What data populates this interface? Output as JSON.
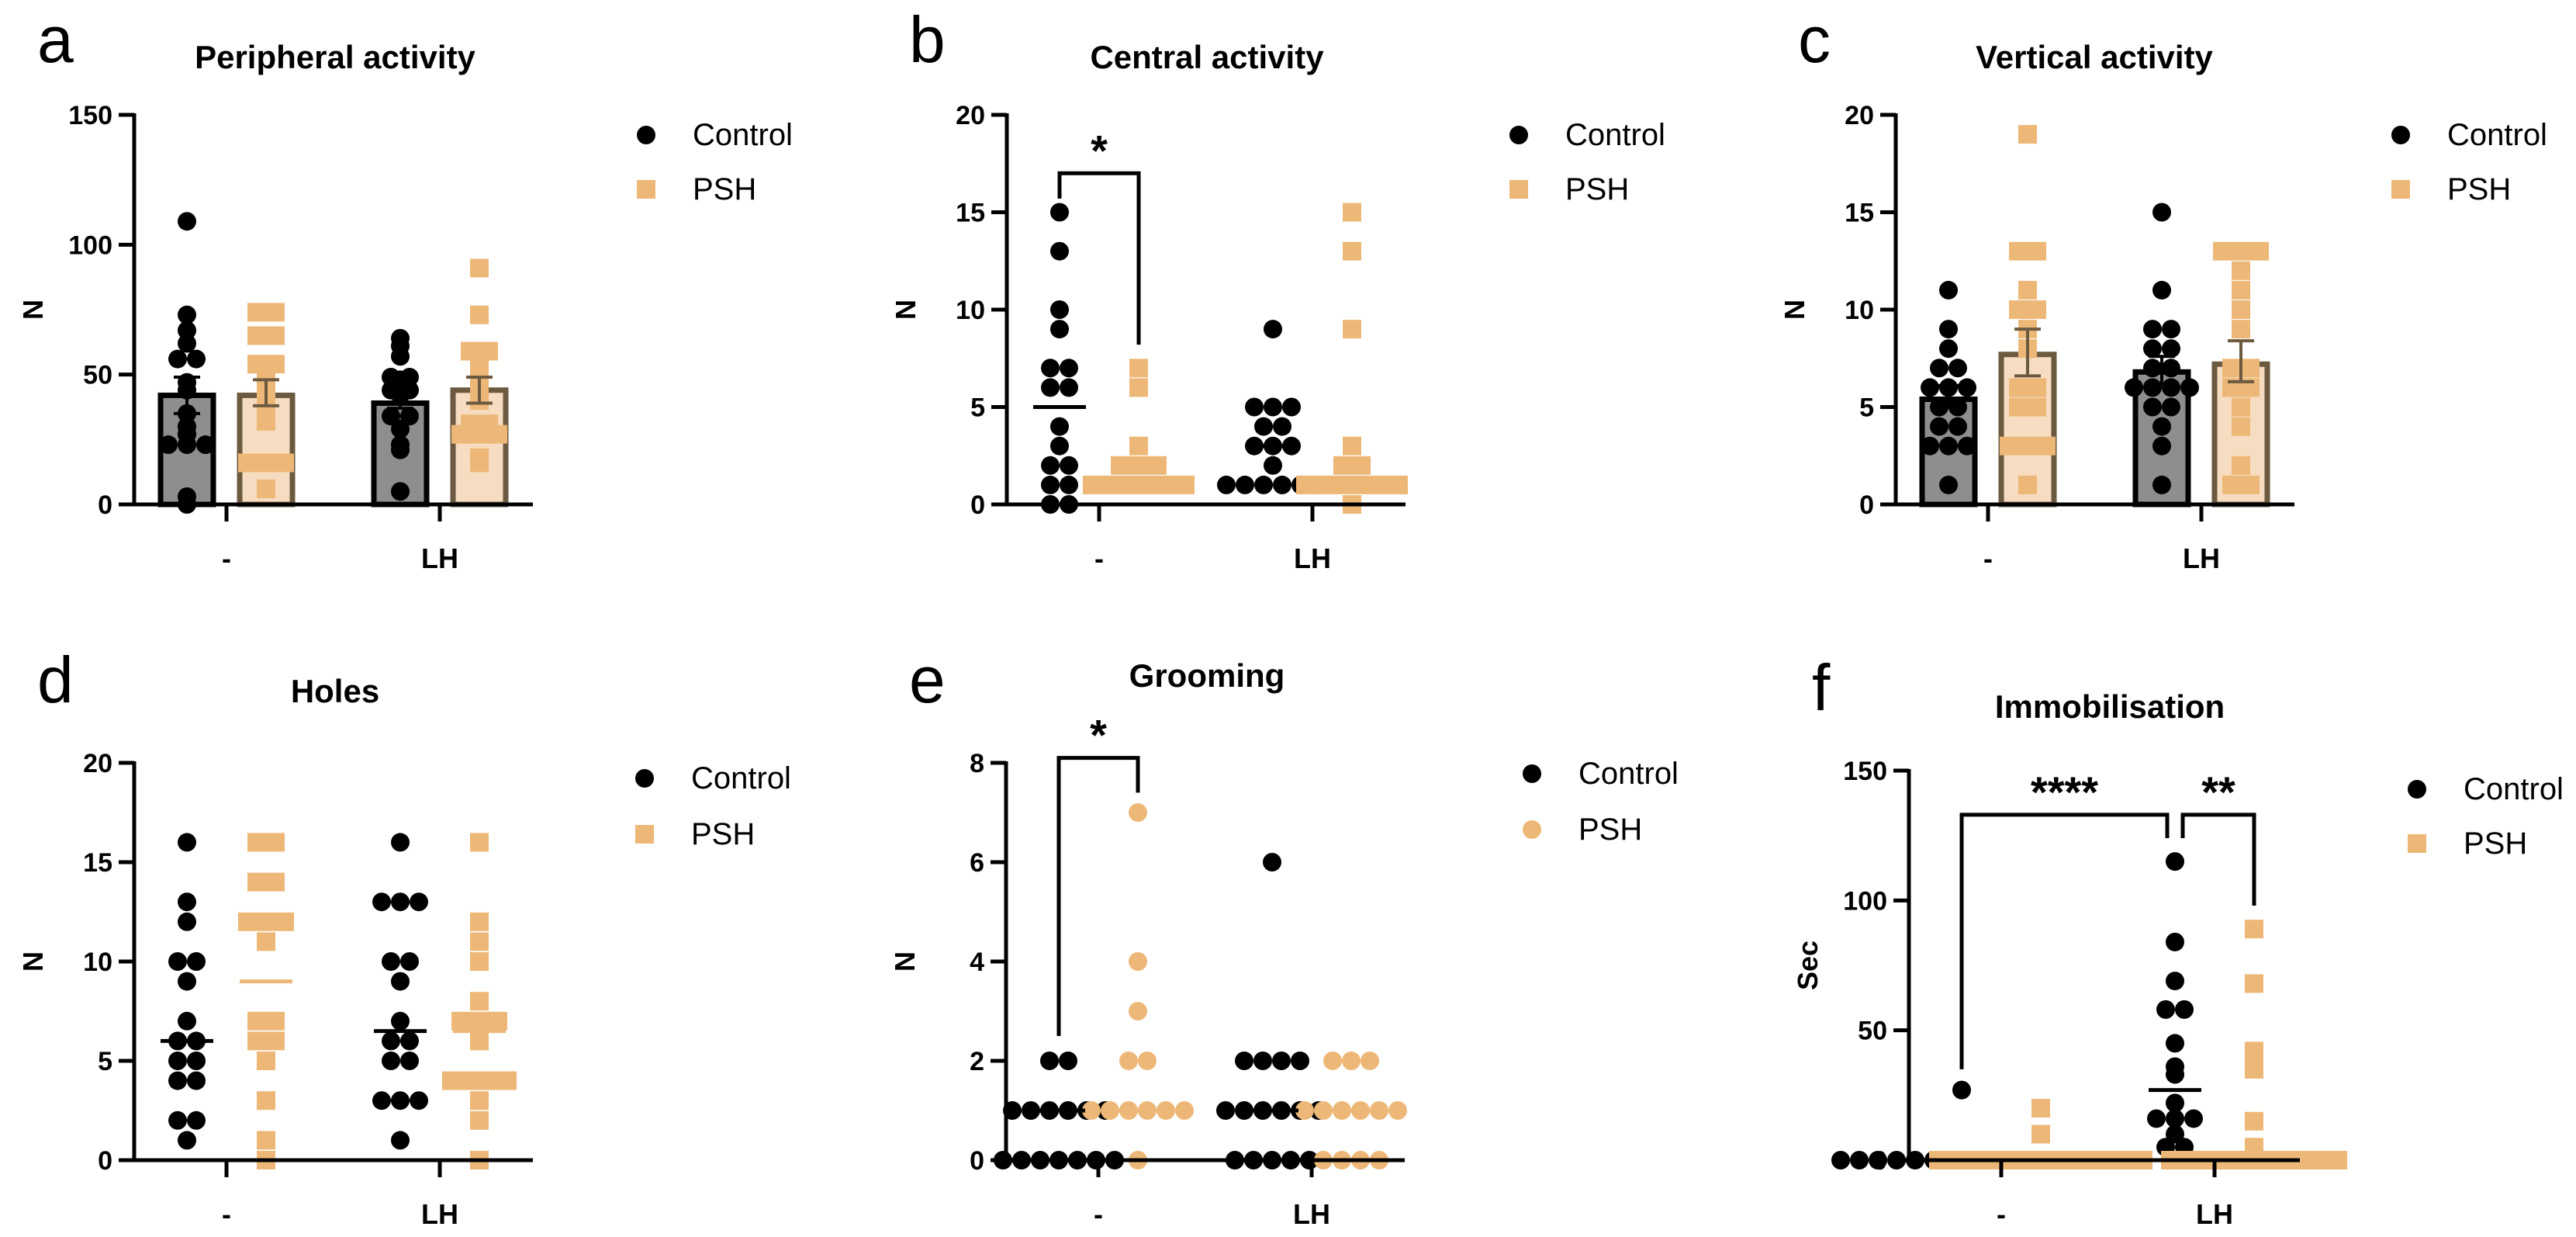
{
  "colors": {
    "control": "#000000",
    "psh": "#EDB877",
    "control_bar": "#8E8E8E",
    "psh_bar": "#F6DCC0",
    "psh_bar_edge": "#6B5A40"
  },
  "chart_data": [
    {
      "panel_label": "a",
      "type": "bar",
      "title": "Peripheral activity",
      "ylabel": "N",
      "ylim": [
        0,
        150
      ],
      "yticks": [
        "0",
        "50",
        "100",
        "150"
      ],
      "ytick_values": [
        0,
        50,
        100,
        150
      ],
      "categories": [
        "-",
        "LH"
      ],
      "legend_placement": "right",
      "series": [
        {
          "name": "Control",
          "marker": "circle",
          "points": [
            [
              109,
              73,
              67,
              62,
              56,
              56,
              47,
              44,
              35,
              30,
              27,
              23,
              23,
              23,
              3,
              0
            ],
            [
              64,
              61,
              57,
              49,
              49,
              48,
              44,
              44,
              42,
              34,
              34,
              29,
              23,
              21,
              5
            ]
          ],
          "bar": [
            42,
            39
          ],
          "sem": [
            [
              35,
              49
            ],
            [
              37,
              43
            ]
          ]
        },
        {
          "name": "PSH",
          "marker": "square",
          "points": [
            [
              74,
              74,
              65,
              65,
              54,
              54,
              51,
              47,
              43,
              38,
              35,
              32,
              16,
              16,
              16,
              6
            ],
            [
              91,
              73,
              59,
              59,
              57,
              51,
              47,
              41,
              40,
              31,
              31,
              27,
              27,
              27,
              18,
              16
            ]
          ],
          "bar": [
            42,
            44
          ],
          "sem": [
            [
              38,
              48
            ],
            [
              39,
              49
            ]
          ]
        }
      ],
      "significance": []
    },
    {
      "panel_label": "b",
      "type": "scatter",
      "title": "Central activity",
      "ylabel": "N",
      "ylim": [
        0,
        20
      ],
      "yticks": [
        "0",
        "5",
        "10",
        "15",
        "20"
      ],
      "ytick_values": [
        0,
        5,
        10,
        15,
        20
      ],
      "categories": [
        "-",
        "LH"
      ],
      "legend_placement": "right",
      "series": [
        {
          "name": "Control",
          "marker": "circle",
          "points": [
            [
              15,
              13,
              10,
              9,
              7,
              7,
              6,
              6,
              4,
              3,
              2,
              2,
              1,
              1,
              0,
              0
            ],
            [
              9,
              5,
              5,
              5,
              4,
              4,
              3,
              3,
              3,
              2,
              1,
              1,
              1,
              1,
              1,
              1
            ]
          ],
          "center_line": [
            5,
            3
          ]
        },
        {
          "name": "PSH",
          "marker": "square",
          "points": [
            [
              7,
              6,
              3,
              2,
              2,
              2,
              1,
              1,
              1,
              1,
              1,
              1
            ],
            [
              15,
              13,
              9,
              3,
              2,
              2,
              1,
              1,
              1,
              1,
              1,
              1,
              0
            ]
          ],
          "center_line": [
            2,
            1
          ]
        }
      ],
      "significance": [
        {
          "label": "*",
          "from": [
            0,
            0
          ],
          "to": [
            0,
            1
          ],
          "top": 17,
          "left_end": 15.7,
          "right_end": 8.2
        }
      ]
    },
    {
      "panel_label": "c",
      "type": "bar",
      "title": "Vertical activity",
      "ylabel": "N",
      "ylim": [
        0,
        20
      ],
      "yticks": [
        "0",
        "5",
        "10",
        "15",
        "20"
      ],
      "ytick_values": [
        0,
        5,
        10,
        15,
        20
      ],
      "categories": [
        "-",
        "LH"
      ],
      "legend_placement": "right",
      "series": [
        {
          "name": "Control",
          "marker": "circle",
          "points": [
            [
              11,
              9,
              8,
              7,
              7,
              6,
              6,
              6,
              5,
              5,
              4,
              4,
              3,
              3,
              3,
              1
            ],
            [
              15,
              11,
              9,
              9,
              8,
              8,
              7,
              7,
              6,
              6,
              6,
              6,
              5,
              5,
              4,
              3,
              1
            ]
          ],
          "bar": [
            5.4,
            6.8
          ],
          "sem": [
            [
              5.0,
              6.1
            ],
            [
              6.2,
              7.6
            ]
          ]
        },
        {
          "name": "PSH",
          "marker": "square",
          "points": [
            [
              19,
              13,
              13,
              11,
              10,
              10,
              9,
              8,
              6,
              6,
              5,
              5,
              3,
              3,
              3,
              1
            ],
            [
              13,
              13,
              13,
              12,
              11,
              10,
              9,
              7,
              7,
              6,
              6,
              5,
              4,
              2,
              1,
              1
            ]
          ],
          "bar": [
            7.7,
            7.2
          ],
          "sem": [
            [
              6.6,
              9.0
            ],
            [
              6.3,
              8.4
            ]
          ]
        }
      ],
      "significance": []
    },
    {
      "panel_label": "d",
      "type": "scatter",
      "title": "Holes",
      "ylabel": "N",
      "ylim": [
        0,
        20
      ],
      "yticks": [
        "0",
        "5",
        "10",
        "15",
        "20"
      ],
      "ytick_values": [
        0,
        5,
        10,
        15,
        20
      ],
      "categories": [
        "-",
        "LH"
      ],
      "legend_placement": "right",
      "series": [
        {
          "name": "Control",
          "marker": "circle",
          "points": [
            [
              16,
              13,
              12,
              10,
              10,
              9,
              7,
              6,
              6,
              5,
              5,
              4,
              4,
              2,
              2,
              1
            ],
            [
              16,
              13,
              13,
              13,
              10,
              10,
              9,
              7,
              6,
              6,
              5,
              5,
              3,
              3,
              3,
              1
            ]
          ],
          "center_line": [
            6,
            6.5
          ]
        },
        {
          "name": "PSH",
          "marker": "square",
          "points": [
            [
              16,
              16,
              14,
              14,
              12,
              12,
              12,
              11,
              7,
              7,
              6,
              6,
              5,
              3,
              1,
              0
            ],
            [
              16,
              12,
              11,
              10,
              8,
              7,
              7,
              7,
              6,
              4,
              4,
              4,
              4,
              3,
              2,
              0
            ]
          ],
          "center_line": [
            9,
            6.5
          ]
        }
      ],
      "significance": []
    },
    {
      "panel_label": "e",
      "type": "scatter",
      "title": "Grooming",
      "ylabel": "N",
      "ylim": [
        0,
        8
      ],
      "yticks": [
        "0",
        "2",
        "4",
        "6",
        "8"
      ],
      "ytick_values": [
        0,
        2,
        4,
        6,
        8
      ],
      "categories": [
        "-",
        "LH"
      ],
      "legend_placement": "right",
      "series": [
        {
          "name": "Control",
          "marker": "circle",
          "points": [
            [
              2,
              2,
              1,
              1,
              1,
              1,
              1,
              1,
              0,
              0,
              0,
              0,
              0,
              0,
              0
            ],
            [
              6,
              2,
              2,
              2,
              2,
              1,
              1,
              1,
              1,
              1,
              1,
              0,
              0,
              0,
              0,
              0
            ]
          ],
          "center_line": [
            1,
            1
          ]
        },
        {
          "name": "PSH",
          "marker": "circle",
          "points": [
            [
              7,
              4,
              3,
              2,
              2,
              1,
              1,
              1,
              1,
              1,
              1,
              0
            ],
            [
              2,
              2,
              2,
              1,
              1,
              1,
              1,
              1,
              1,
              0,
              0,
              0,
              0
            ]
          ],
          "center_line": [
            1,
            1
          ]
        }
      ],
      "significance": [
        {
          "label": "*",
          "from": [
            0,
            0
          ],
          "to": [
            0,
            1
          ],
          "top": 8.1,
          "left_end": 2.5,
          "right_end": 7.4
        }
      ]
    },
    {
      "panel_label": "f",
      "type": "scatter",
      "title": "Immobilisation",
      "ylabel": "Sec",
      "ylim": [
        0,
        150
      ],
      "yticks": [
        "0",
        "50",
        "100",
        "150"
      ],
      "ytick_values": [
        0,
        50,
        100,
        150
      ],
      "categories": [
        "-",
        "LH"
      ],
      "legend_placement": "right",
      "series": [
        {
          "name": "Control",
          "marker": "circle",
          "points": [
            [
              27,
              0,
              0,
              0,
              0,
              0,
              0,
              0,
              0,
              0,
              0,
              0,
              0,
              0,
              0
            ],
            [
              115,
              84,
              69,
              58,
              58,
              45,
              36,
              33,
              22,
              16,
              16,
              16,
              10,
              5,
              5,
              0
            ]
          ],
          "center_line": [
            0,
            27
          ]
        },
        {
          "name": "PSH",
          "marker": "square",
          "points": [
            [
              20,
              10,
              0,
              0,
              0,
              0,
              0,
              0,
              0,
              0,
              0,
              0,
              0,
              0
            ],
            [
              89,
              68,
              42,
              35,
              15,
              5,
              0,
              0,
              0,
              0,
              0,
              0,
              0,
              0,
              0,
              0
            ]
          ],
          "center_line": [
            0,
            0
          ]
        }
      ],
      "significance": [
        {
          "label": "****",
          "from": [
            0,
            0
          ],
          "to": [
            1,
            0
          ],
          "top": 133,
          "left_end": 35,
          "right_end": 124
        },
        {
          "label": "**",
          "from": [
            1,
            0
          ],
          "to": [
            1,
            1
          ],
          "top": 133,
          "left_end": 124,
          "right_end": 98
        }
      ]
    }
  ]
}
